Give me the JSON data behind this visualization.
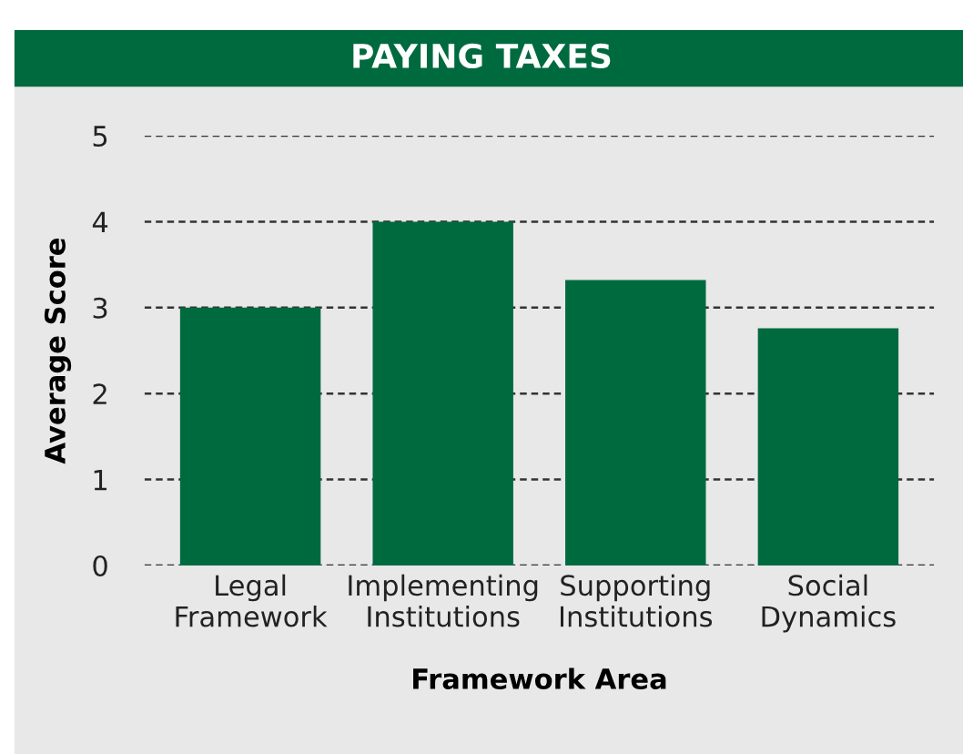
{
  "chart_data": {
    "type": "bar",
    "title": "PAYING TAXES",
    "categories": [
      "Legal\nFramework",
      "Implementing\nInstitutions",
      "Supporting\nInstitutions",
      "Social\nDynamics"
    ],
    "values": [
      3.0,
      4.0,
      3.32,
      2.76
    ],
    "color": "#006a3f",
    "xlabel": "Framework Area",
    "ylabel": "Average Score",
    "ylim": [
      0,
      5
    ],
    "yticks": [
      0,
      1,
      2,
      3,
      4,
      5
    ],
    "grid": "y"
  }
}
